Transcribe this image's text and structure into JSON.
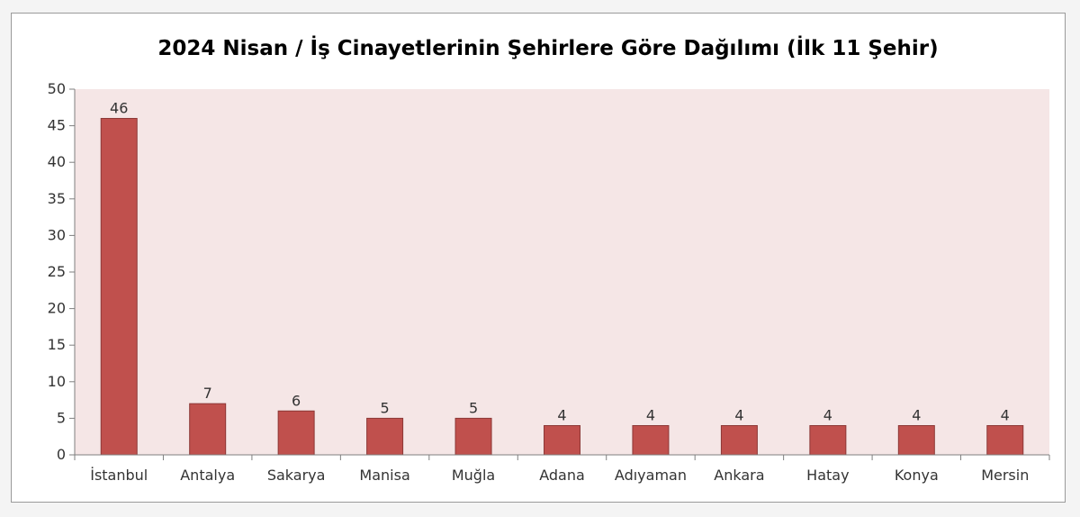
{
  "chart_data": {
    "type": "bar",
    "title": "2024 Nisan / İş Cinayetlerinin Şehirlere Göre Dağılımı (İlk 11 Şehir)",
    "xlabel": "",
    "ylabel": "",
    "categories": [
      "İstanbul",
      "Antalya",
      "Sakarya",
      "Manisa",
      "Muğla",
      "Adana",
      "Adıyaman",
      "Ankara",
      "Hatay",
      "Konya",
      "Mersin"
    ],
    "values": [
      46,
      7,
      6,
      5,
      5,
      4,
      4,
      4,
      4,
      4,
      4
    ],
    "ylim": [
      0,
      50
    ],
    "yticks": [
      0,
      5,
      10,
      15,
      20,
      25,
      30,
      35,
      40,
      45,
      50
    ],
    "data_labels": true,
    "grid": false,
    "legend": "none",
    "colors": {
      "bar_fill": "#c0504d",
      "bar_stroke": "#8c3836",
      "plot_background": "#f5e6e6",
      "axis": "#7f7f7f"
    }
  }
}
